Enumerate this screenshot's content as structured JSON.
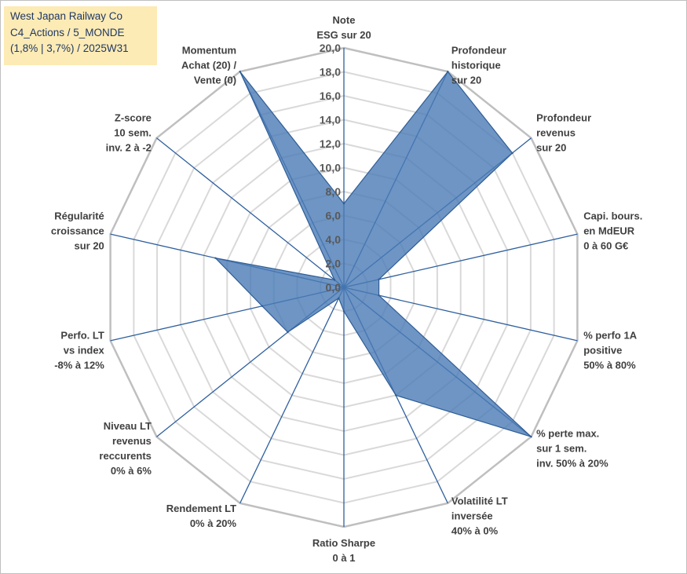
{
  "title_box": {
    "line1": "West Japan Railway Co",
    "line2": "C4_Actions / 5_MONDE",
    "line3": "(1,8% | 3,7%) / 2025W31"
  },
  "chart_data": {
    "type": "radar",
    "rmin": 0,
    "rmax": 20,
    "tick_step": 2,
    "ticks": [
      "0,0",
      "2,0",
      "4,0",
      "6,0",
      "8,0",
      "10,0",
      "12,0",
      "14,0",
      "16,0",
      "18,0",
      "20,0"
    ],
    "grid": true,
    "axes": [
      {
        "label": [
          "Note",
          "ESG sur 20"
        ],
        "value": 7
      },
      {
        "label": [
          "Profondeur",
          "historique",
          "sur 20"
        ],
        "value": 20
      },
      {
        "label": [
          "Profondeur",
          "revenus",
          "sur 20"
        ],
        "value": 18
      },
      {
        "label": [
          "Capi. bours.",
          "en MdEUR",
          "0 à 60 G€"
        ],
        "value": 3
      },
      {
        "label": [
          "% perfo 1A",
          "positive",
          "50% à 80%"
        ],
        "value": 3
      },
      {
        "label": [
          "% perte max.",
          "sur 1 sem.",
          "inv. 50% à 20%"
        ],
        "value": 20
      },
      {
        "label": [
          "Volatilité LT",
          "inversée",
          "40% à 0%"
        ],
        "value": 10
      },
      {
        "label": [
          "Ratio Sharpe",
          "0 à 1"
        ],
        "value": 2
      },
      {
        "label": [
          "Rendement LT",
          "0% à 20%"
        ],
        "value": 1
      },
      {
        "label": [
          "Niveau LT",
          "revenus",
          "reccurents",
          "0% à 6%"
        ],
        "value": 6
      },
      {
        "label": [
          "Perfo. LT",
          "vs index",
          "-8% à 12%"
        ],
        "value": 7
      },
      {
        "label": [
          "Régularité",
          "croissance",
          "sur 20"
        ],
        "value": 11
      },
      {
        "label": [
          "Z-score",
          "10 sem.",
          "inv. 2 à -2"
        ],
        "value": 1
      },
      {
        "label": [
          "Momentum",
          "Achat (20) /",
          "Vente (0)"
        ],
        "value": 20
      }
    ],
    "colors": {
      "fill": "#4a7ab5",
      "outline": "#2e5d96",
      "spoke": "#2e5f9e",
      "grid_outer": "#bfbfbf",
      "grid_inner": "#d9d9d9"
    }
  }
}
